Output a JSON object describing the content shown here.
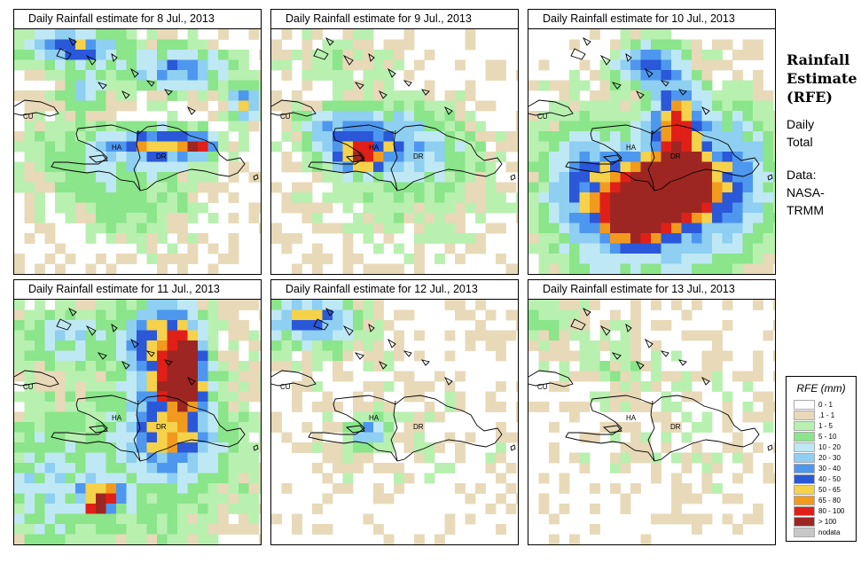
{
  "panels": [
    {
      "title": "Daily Rainfall estimate for  8 Jul., 2013"
    },
    {
      "title": "Daily Rainfall estimate for  9 Jul., 2013"
    },
    {
      "title": "Daily Rainfall estimate for  10 Jul., 2013"
    },
    {
      "title": "Daily Rainfall estimate for  11 Jul., 2013"
    },
    {
      "title": "Daily Rainfall estimate for  12 Jul., 2013"
    },
    {
      "title": "Daily Rainfall estimate for  13 Jul., 2013"
    }
  ],
  "map_labels": {
    "cu": "CU",
    "ha": "HA",
    "dr": "DR"
  },
  "side": {
    "title": "Rainfall\nEstimate\n(RFE)",
    "period": "Daily\nTotal",
    "source": "Data:\nNASA-\nTRMM"
  },
  "legend": {
    "title": "RFE (mm)",
    "items": [
      {
        "label": "0 - 1",
        "color": "#ffffff"
      },
      {
        "label": ".1 - 1",
        "color": "#e8d9b8"
      },
      {
        "label": "1 - 5",
        "color": "#b8f0b0"
      },
      {
        "label": "5 - 10",
        "color": "#8be58a"
      },
      {
        "label": "10 - 20",
        "color": "#bfe8f5"
      },
      {
        "label": "20 - 30",
        "color": "#8ecff2"
      },
      {
        "label": "30 - 40",
        "color": "#4e97ee"
      },
      {
        "label": "40 - 50",
        "color": "#2a58d8"
      },
      {
        "label": "50 - 65",
        "color": "#f5d24a"
      },
      {
        "label": "65 - 80",
        "color": "#f29a1e"
      },
      {
        "label": "80 - 100",
        "color": "#e02018"
      },
      {
        "label": "> 100",
        "color": "#9e2622"
      },
      {
        "label": "nodata",
        "color": "#c8c8c8"
      }
    ]
  }
}
